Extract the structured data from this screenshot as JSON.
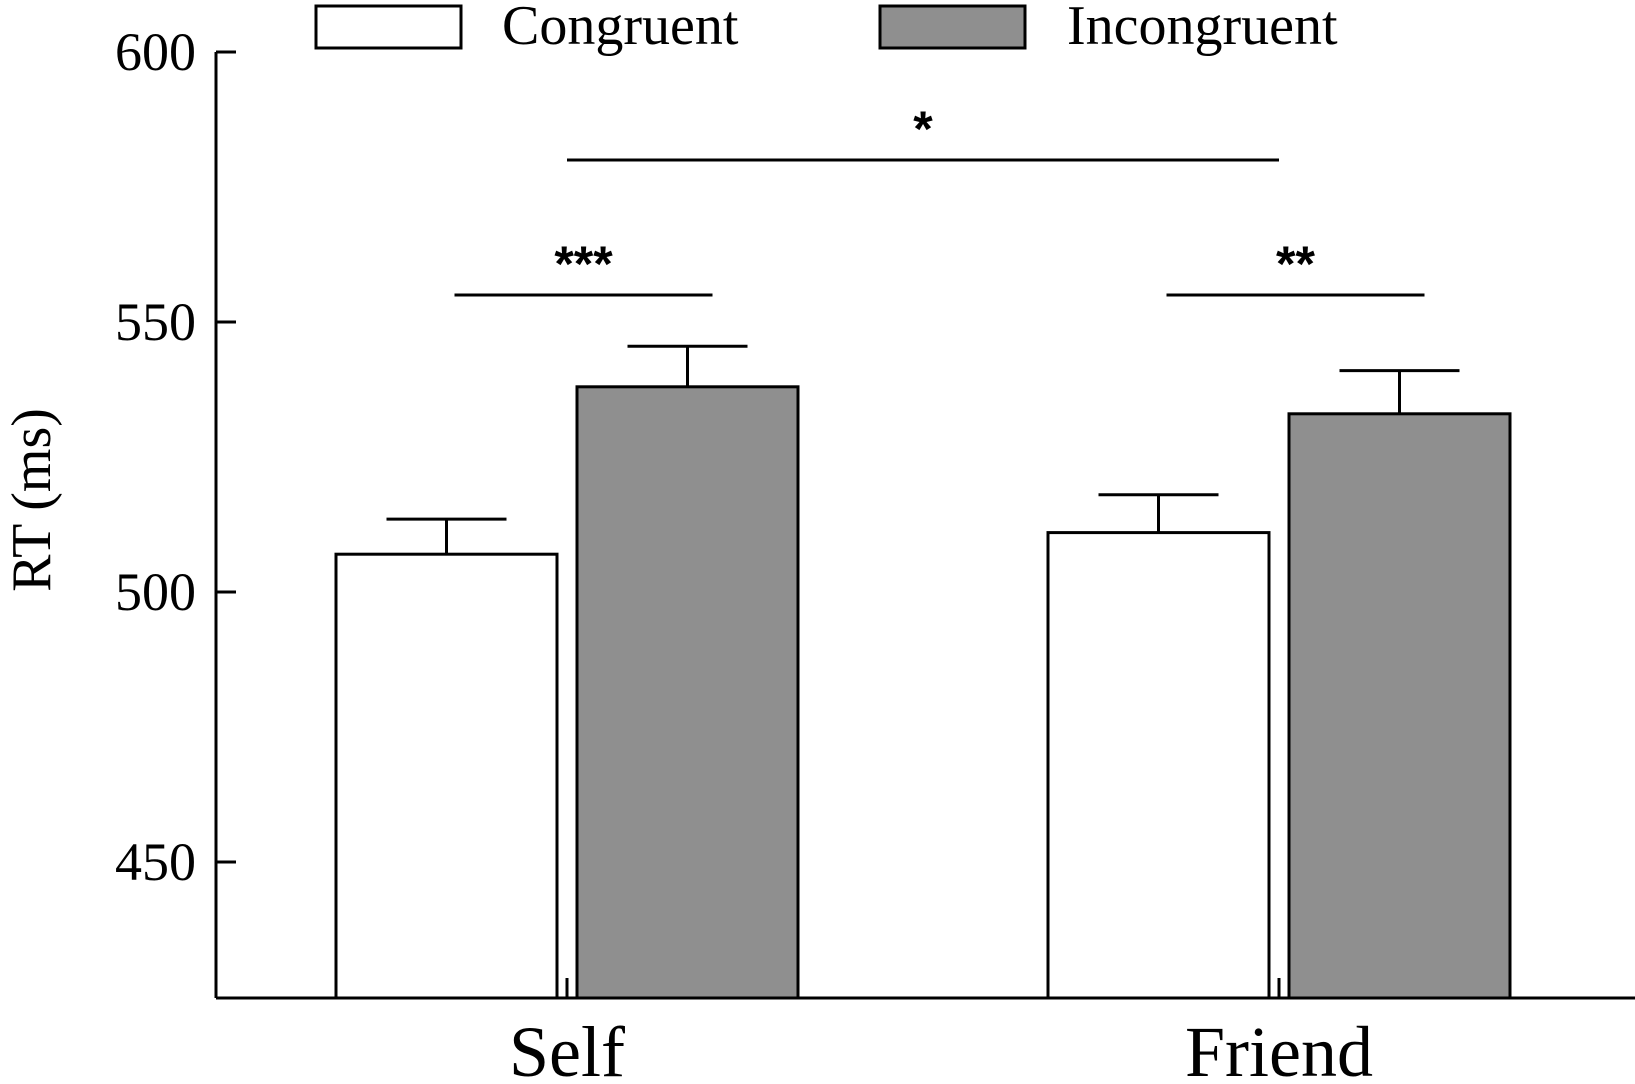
{
  "chart_data": {
    "type": "bar",
    "categories": [
      "Self",
      "Friend"
    ],
    "series": [
      {
        "name": "Congruent",
        "values": [
          507,
          511
        ],
        "errors": [
          6.5,
          7
        ],
        "color": "#ffffff"
      },
      {
        "name": "Incongruent",
        "values": [
          538,
          533
        ],
        "errors": [
          7.5,
          8
        ],
        "color": "#8f8f8f"
      }
    ],
    "xlabel": "",
    "ylabel": "RT (ms)",
    "ylim": [
      425,
      600
    ],
    "yticks": [
      450,
      500,
      550,
      600
    ],
    "legend": "top",
    "grid": false,
    "annotations": [
      {
        "type": "within",
        "category": 0,
        "level": 555,
        "text": "***"
      },
      {
        "type": "within",
        "category": 1,
        "level": 555,
        "text": "**"
      },
      {
        "type": "between",
        "level": 580,
        "text": "*"
      }
    ]
  }
}
